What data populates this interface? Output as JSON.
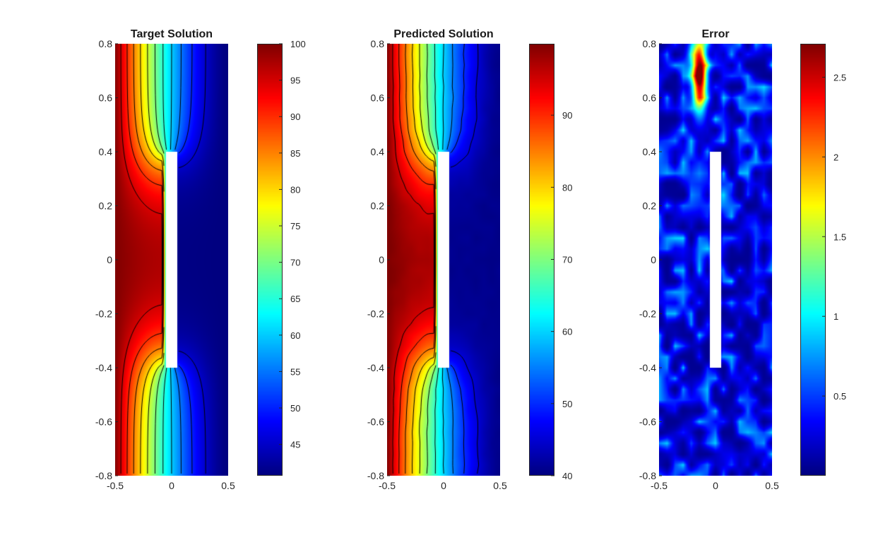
{
  "chart_data": [
    {
      "type": "heatmap",
      "title": "Target Solution",
      "xlim": [
        -0.5,
        0.5
      ],
      "ylim": [
        -0.8,
        0.8
      ],
      "xticks": [
        "-0.5",
        "0",
        "0.5"
      ],
      "yticks": [
        "0.8",
        "0.6",
        "0.4",
        "0.2",
        "0",
        "-0.2",
        "-0.4",
        "-0.6",
        "-0.8"
      ],
      "colormap": "jet",
      "clim": [
        40.7,
        100
      ],
      "colorbar_ticks": [
        "100",
        "95",
        "90",
        "85",
        "80",
        "75",
        "70",
        "65",
        "60",
        "55",
        "50",
        "45"
      ],
      "contours": true,
      "obstacle": {
        "x": [
          -0.05,
          0.05
        ],
        "y": [
          -0.4,
          0.4
        ]
      }
    },
    {
      "type": "heatmap",
      "title": "Predicted Solution",
      "xlim": [
        -0.5,
        0.5
      ],
      "ylim": [
        -0.8,
        0.8
      ],
      "xticks": [
        "-0.5",
        "0",
        "0.5"
      ],
      "yticks": [
        "0.8",
        "0.6",
        "0.4",
        "0.2",
        "0",
        "-0.2",
        "-0.4",
        "-0.6",
        "-0.8"
      ],
      "colormap": "jet",
      "clim": [
        40,
        99.9
      ],
      "colorbar_ticks": [
        "90",
        "80",
        "70",
        "60",
        "50",
        "40"
      ],
      "contours": true,
      "obstacle": {
        "x": [
          -0.05,
          0.05
        ],
        "y": [
          -0.4,
          0.4
        ]
      }
    },
    {
      "type": "heatmap",
      "title": "Error",
      "xlim": [
        -0.5,
        0.5
      ],
      "ylim": [
        -0.8,
        0.8
      ],
      "xticks": [
        "-0.5",
        "0",
        "0.5"
      ],
      "yticks": [
        "0.8",
        "0.6",
        "0.4",
        "0.2",
        "0",
        "-0.2",
        "-0.4",
        "-0.6",
        "-0.8"
      ],
      "colormap": "jet",
      "clim": [
        0,
        2.71
      ],
      "colorbar_ticks": [
        "2.5",
        "2",
        "1.5",
        "1",
        "0.5"
      ],
      "contours": false,
      "peak": {
        "x": -0.14,
        "y": 0.68,
        "value": 2.7
      },
      "obstacle": {
        "x": [
          -0.05,
          0.05
        ],
        "y": [
          -0.4,
          0.4
        ]
      }
    }
  ]
}
